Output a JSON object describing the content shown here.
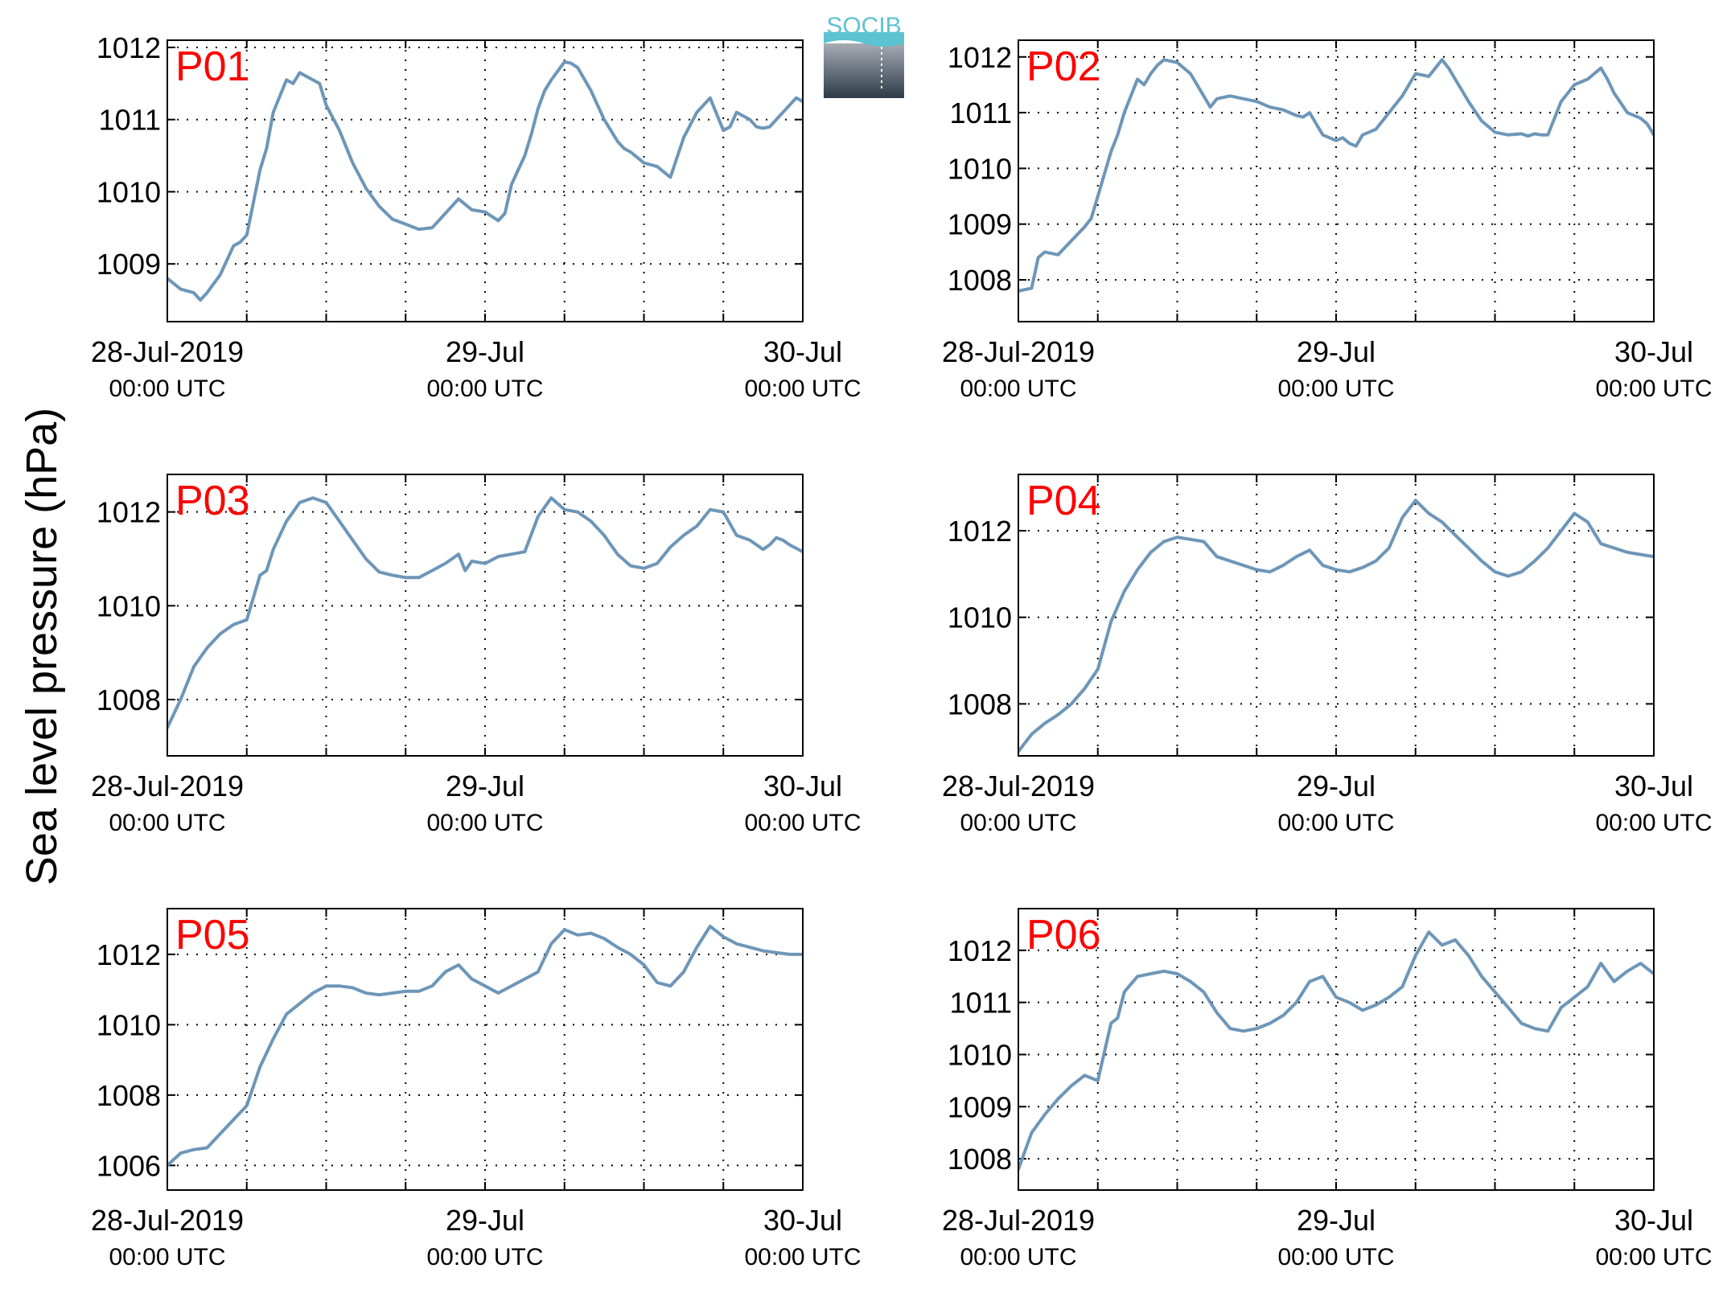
{
  "figure": {
    "ylabel": "Sea level pressure (hPa)",
    "logo_text": "SOCIB",
    "line_color": "#6d96b8",
    "panel_label_color": "#ff0000",
    "x_ticks": [
      {
        "t": 0,
        "main": "28-Jul-2019",
        "sub": "00:00 UTC"
      },
      {
        "t": 24,
        "main": "29-Jul",
        "sub": "00:00 UTC"
      },
      {
        "t": 48,
        "main": "30-Jul",
        "sub": "00:00 UTC"
      }
    ],
    "x_grid_hours": [
      0,
      6,
      12,
      18,
      24,
      30,
      36,
      42,
      48
    ],
    "grid": "dotted"
  },
  "chart_data": [
    {
      "type": "line",
      "label": "P01",
      "xunit": "hours since 28-Jul-2019 00:00 UTC",
      "xlim": [
        0,
        48
      ],
      "ylim": [
        1008.2,
        1012.1
      ],
      "yticks": [
        1009,
        1010,
        1011,
        1012
      ],
      "x": [
        0,
        1,
        2,
        2.5,
        3,
        4,
        5,
        5.5,
        6,
        7,
        7.5,
        8,
        9,
        9.5,
        10,
        11,
        11.5,
        12,
        13,
        14,
        15,
        16,
        17,
        18,
        19,
        20,
        22,
        23,
        24,
        25,
        25.5,
        26,
        26.5,
        27,
        27.5,
        28,
        28.5,
        29,
        30,
        30.5,
        31,
        32,
        33,
        34,
        34.5,
        35,
        36,
        37,
        38,
        39,
        40,
        41,
        42,
        42.5,
        43,
        44,
        44.5,
        45,
        45.5,
        46,
        47,
        47.5,
        48
      ],
      "y": [
        1008.8,
        1008.65,
        1008.6,
        1008.5,
        1008.6,
        1008.85,
        1009.25,
        1009.3,
        1009.4,
        1010.3,
        1010.6,
        1011.1,
        1011.55,
        1011.5,
        1011.65,
        1011.55,
        1011.5,
        1011.2,
        1010.85,
        1010.4,
        1010.05,
        1009.8,
        1009.62,
        1009.55,
        1009.48,
        1009.5,
        1009.9,
        1009.75,
        1009.72,
        1009.6,
        1009.7,
        1010.1,
        1010.3,
        1010.5,
        1010.8,
        1011.15,
        1011.4,
        1011.55,
        1011.8,
        1011.78,
        1011.72,
        1011.4,
        1011.0,
        1010.7,
        1010.6,
        1010.55,
        1010.4,
        1010.35,
        1010.2,
        1010.75,
        1011.1,
        1011.3,
        1010.85,
        1010.9,
        1011.1,
        1011.0,
        1010.9,
        1010.88,
        1010.9,
        1011.0,
        1011.2,
        1011.3,
        1011.25
      ]
    },
    {
      "type": "line",
      "label": "P02",
      "xunit": "hours since 28-Jul-2019 00:00 UTC",
      "xlim": [
        0,
        48
      ],
      "ylim": [
        1007.25,
        1012.3
      ],
      "yticks": [
        1008,
        1009,
        1010,
        1011,
        1012
      ],
      "x": [
        0,
        1,
        1.5,
        2,
        3,
        4,
        5,
        5.5,
        6,
        7,
        7.5,
        8,
        9,
        9.5,
        10,
        10.5,
        11,
        12,
        13,
        14,
        14.5,
        15,
        16,
        17,
        18,
        19,
        20,
        21,
        21.5,
        22,
        22.5,
        23,
        24,
        24.5,
        25,
        25.5,
        26,
        27,
        28,
        29,
        30,
        31,
        32,
        32.5,
        33,
        33.5,
        34,
        35,
        36,
        37,
        38,
        38.5,
        39,
        39.5,
        40,
        41,
        42,
        43,
        44,
        44.5,
        45,
        46,
        47,
        47.5,
        48
      ],
      "y": [
        1007.8,
        1007.85,
        1008.4,
        1008.5,
        1008.45,
        1008.7,
        1008.95,
        1009.1,
        1009.5,
        1010.3,
        1010.6,
        1011.0,
        1011.6,
        1011.5,
        1011.7,
        1011.85,
        1011.95,
        1011.9,
        1011.7,
        1011.3,
        1011.1,
        1011.25,
        1011.3,
        1011.25,
        1011.2,
        1011.1,
        1011.05,
        1010.95,
        1010.92,
        1011.0,
        1010.8,
        1010.6,
        1010.5,
        1010.55,
        1010.45,
        1010.4,
        1010.6,
        1010.7,
        1011.0,
        1011.3,
        1011.7,
        1011.65,
        1011.95,
        1011.8,
        1011.6,
        1011.4,
        1011.2,
        1010.85,
        1010.65,
        1010.6,
        1010.62,
        1010.58,
        1010.62,
        1010.6,
        1010.6,
        1011.2,
        1011.5,
        1011.6,
        1011.8,
        1011.6,
        1011.35,
        1011.0,
        1010.9,
        1010.8,
        1010.6
      ]
    },
    {
      "type": "line",
      "label": "P03",
      "xunit": "hours since 28-Jul-2019 00:00 UTC",
      "xlim": [
        0,
        48
      ],
      "ylim": [
        1006.8,
        1012.8
      ],
      "yticks": [
        1008,
        1010,
        1012
      ],
      "x": [
        0,
        1,
        2,
        3,
        4,
        5,
        5.5,
        6,
        7,
        7.5,
        8,
        9,
        9.5,
        10,
        11,
        12,
        13,
        14,
        15,
        16,
        17,
        18,
        19,
        20,
        21,
        22,
        22.5,
        23,
        24,
        25,
        26,
        27,
        28,
        29,
        30,
        31,
        32,
        33,
        34,
        35,
        36,
        37,
        38,
        39,
        40,
        41,
        42,
        43,
        44,
        45,
        45.5,
        46,
        46.5,
        47,
        48
      ],
      "y": [
        1007.4,
        1008.0,
        1008.7,
        1009.1,
        1009.4,
        1009.6,
        1009.65,
        1009.7,
        1010.65,
        1010.75,
        1011.2,
        1011.8,
        1012.0,
        1012.2,
        1012.3,
        1012.2,
        1011.8,
        1011.4,
        1011.0,
        1010.72,
        1010.65,
        1010.6,
        1010.6,
        1010.75,
        1010.9,
        1011.1,
        1010.75,
        1010.95,
        1010.9,
        1011.05,
        1011.1,
        1011.15,
        1011.9,
        1012.3,
        1012.05,
        1012.0,
        1011.8,
        1011.5,
        1011.1,
        1010.85,
        1010.8,
        1010.9,
        1011.25,
        1011.5,
        1011.7,
        1012.05,
        1012.0,
        1011.5,
        1011.4,
        1011.2,
        1011.3,
        1011.45,
        1011.4,
        1011.3,
        1011.15
      ]
    },
    {
      "type": "line",
      "label": "P04",
      "xunit": "hours since 28-Jul-2019 00:00 UTC",
      "xlim": [
        0,
        48
      ],
      "ylim": [
        1006.8,
        1013.3
      ],
      "yticks": [
        1008,
        1010,
        1012
      ],
      "x": [
        0,
        1,
        2,
        3,
        4,
        5,
        6,
        7,
        8,
        9,
        10,
        11,
        12,
        13,
        14,
        15,
        16,
        17,
        18,
        19,
        20,
        21,
        22,
        23,
        24,
        25,
        26,
        27,
        28,
        29,
        30,
        31,
        32,
        33,
        34,
        35,
        36,
        37,
        38,
        39,
        40,
        41,
        42,
        43,
        44,
        45,
        46,
        47,
        48
      ],
      "y": [
        1006.9,
        1007.3,
        1007.55,
        1007.75,
        1008.0,
        1008.35,
        1008.8,
        1009.9,
        1010.6,
        1011.1,
        1011.5,
        1011.75,
        1011.85,
        1011.8,
        1011.75,
        1011.4,
        1011.3,
        1011.2,
        1011.1,
        1011.05,
        1011.2,
        1011.4,
        1011.55,
        1011.2,
        1011.1,
        1011.05,
        1011.15,
        1011.3,
        1011.6,
        1012.3,
        1012.7,
        1012.4,
        1012.2,
        1011.9,
        1011.6,
        1011.3,
        1011.05,
        1010.95,
        1011.05,
        1011.3,
        1011.6,
        1012.0,
        1012.4,
        1012.2,
        1011.7,
        1011.6,
        1011.5,
        1011.45,
        1011.4
      ]
    },
    {
      "type": "line",
      "label": "P05",
      "xunit": "hours since 28-Jul-2019 00:00 UTC",
      "xlim": [
        0,
        48
      ],
      "ylim": [
        1005.3,
        1013.3
      ],
      "yticks": [
        1006,
        1008,
        1010,
        1012
      ],
      "x": [
        0,
        1,
        2,
        3,
        4,
        5,
        6,
        7,
        8,
        9,
        10,
        11,
        12,
        13,
        14,
        15,
        16,
        17,
        18,
        19,
        20,
        21,
        22,
        23,
        24,
        25,
        26,
        27,
        28,
        29,
        30,
        31,
        32,
        33,
        34,
        35,
        36,
        37,
        38,
        39,
        40,
        41,
        42,
        43,
        44,
        45,
        46,
        47,
        48
      ],
      "y": [
        1006.0,
        1006.35,
        1006.45,
        1006.5,
        1006.9,
        1007.3,
        1007.7,
        1008.8,
        1009.6,
        1010.3,
        1010.6,
        1010.9,
        1011.1,
        1011.1,
        1011.05,
        1010.9,
        1010.85,
        1010.9,
        1010.95,
        1010.95,
        1011.1,
        1011.5,
        1011.7,
        1011.3,
        1011.1,
        1010.9,
        1011.1,
        1011.3,
        1011.5,
        1012.3,
        1012.7,
        1012.55,
        1012.6,
        1012.45,
        1012.2,
        1012.0,
        1011.7,
        1011.2,
        1011.1,
        1011.5,
        1012.2,
        1012.8,
        1012.5,
        1012.3,
        1012.2,
        1012.1,
        1012.05,
        1012.0,
        1012.0
      ]
    },
    {
      "type": "line",
      "label": "P06",
      "xunit": "hours since 28-Jul-2019 00:00 UTC",
      "xlim": [
        0,
        48
      ],
      "ylim": [
        1007.4,
        1012.8
      ],
      "yticks": [
        1008,
        1009,
        1010,
        1011,
        1012
      ],
      "x": [
        0,
        1,
        2,
        3,
        4,
        5,
        5.5,
        6,
        7,
        7.5,
        8,
        9,
        10,
        11,
        12,
        13,
        14,
        15,
        16,
        17,
        18,
        19,
        20,
        21,
        22,
        23,
        24,
        25,
        26,
        27,
        28,
        29,
        30,
        31,
        32,
        33,
        34,
        35,
        36,
        37,
        38,
        39,
        40,
        41,
        42,
        43,
        44,
        45,
        46,
        47,
        48
      ],
      "y": [
        1007.8,
        1008.5,
        1008.85,
        1009.15,
        1009.4,
        1009.6,
        1009.55,
        1009.5,
        1010.6,
        1010.7,
        1011.2,
        1011.5,
        1011.55,
        1011.6,
        1011.55,
        1011.4,
        1011.2,
        1010.8,
        1010.5,
        1010.45,
        1010.5,
        1010.6,
        1010.75,
        1011.0,
        1011.4,
        1011.5,
        1011.1,
        1011.0,
        1010.85,
        1010.95,
        1011.1,
        1011.3,
        1011.9,
        1012.35,
        1012.1,
        1012.2,
        1011.9,
        1011.5,
        1011.2,
        1010.9,
        1010.6,
        1010.5,
        1010.45,
        1010.9,
        1011.1,
        1011.3,
        1011.75,
        1011.4,
        1011.6,
        1011.75,
        1011.55
      ]
    }
  ]
}
